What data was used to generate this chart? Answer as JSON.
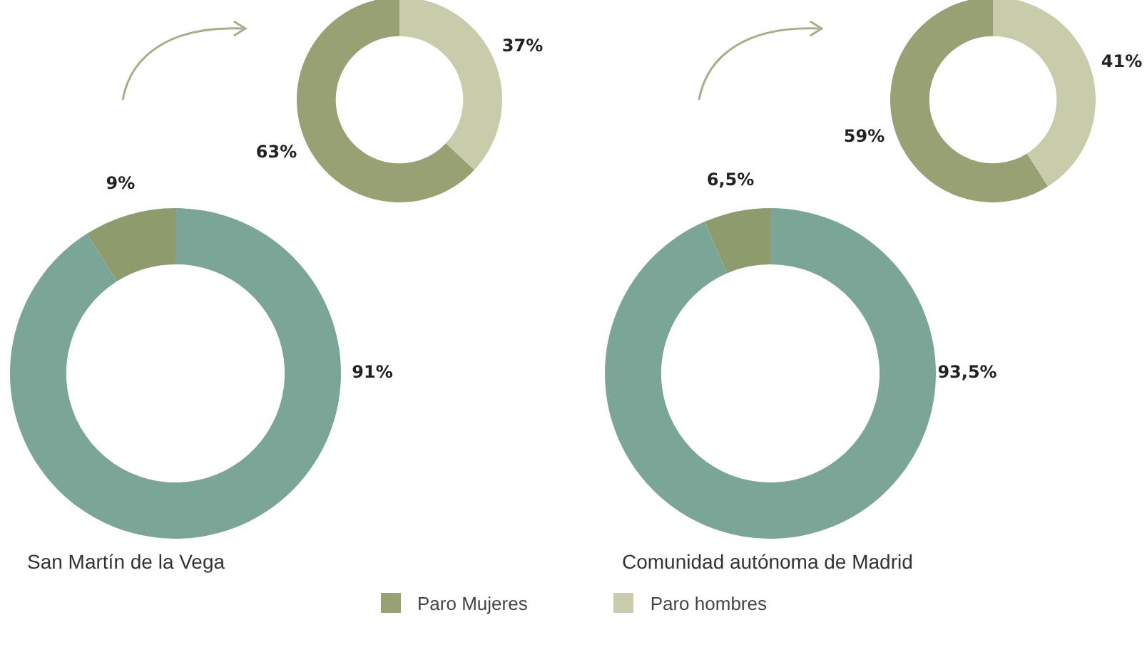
{
  "chart_data": [
    {
      "type": "donut",
      "title": "San Martín de la Vega",
      "categories": [
        null,
        null
      ],
      "values": [
        9,
        91
      ],
      "colors": [
        "#8e9b6c",
        "#7ba597"
      ],
      "data_labels": true,
      "value_labels": [
        "9%",
        "91%"
      ],
      "legend": false
    },
    {
      "type": "donut",
      "categories": [
        "Paro Mujeres",
        "Paro hombres"
      ],
      "values": [
        63,
        37
      ],
      "colors": [
        "#97a173",
        "#c9ccab"
      ],
      "data_labels": true,
      "value_labels": [
        "63%",
        "37%"
      ],
      "legend": "bottom"
    },
    {
      "type": "donut",
      "title": "Comunidad autónoma de Madrid",
      "categories": [
        null,
        null
      ],
      "values": [
        6.5,
        93.5
      ],
      "colors": [
        "#8e9b6c",
        "#7ba597"
      ],
      "data_labels": true,
      "value_labels": [
        "6,5%",
        "93,5%"
      ],
      "legend": false
    },
    {
      "type": "donut",
      "categories": [
        null,
        null
      ],
      "values": [
        59,
        41
      ],
      "colors": [
        "#97a173",
        "#c9ccab"
      ],
      "data_labels": true,
      "value_labels": [
        "59%",
        "41%"
      ],
      "legend": false
    }
  ]
}
